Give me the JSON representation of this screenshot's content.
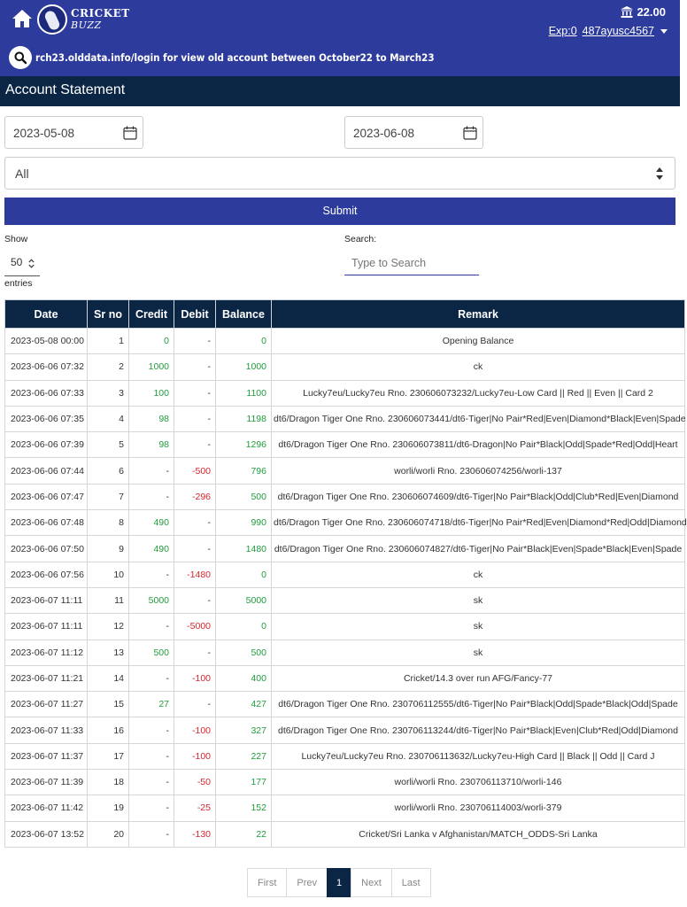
{
  "header": {
    "logo_line1": "CRICKET",
    "logo_line2": "BUZZ",
    "balance": "22.00",
    "exposure": "Exp:0",
    "username": "487ayusc4567",
    "marquee": "rch23.olddata.info/login for view old account between October22 to March23"
  },
  "page": {
    "title": "Account Statement"
  },
  "form": {
    "from_date": "2023-05-08",
    "to_date": "2023-06-08",
    "type_selected": "All",
    "submit_label": "Submit",
    "show_label": "Show",
    "show_value": "50",
    "entries_label": "entries",
    "search_label": "Search:",
    "search_placeholder": "Type to Search"
  },
  "table": {
    "headers": [
      "Date",
      "Sr no",
      "Credit",
      "Debit",
      "Balance",
      "Remark"
    ],
    "rows": [
      {
        "date": "2023-05-08 00:00",
        "sr": "1",
        "credit": "0",
        "debit": "-",
        "balance": "0",
        "remark": "Opening Balance"
      },
      {
        "date": "2023-06-06 07:32",
        "sr": "2",
        "credit": "1000",
        "debit": "-",
        "balance": "1000",
        "remark": "ck"
      },
      {
        "date": "2023-06-06 07:33",
        "sr": "3",
        "credit": "100",
        "debit": "-",
        "balance": "1100",
        "remark": "Lucky7eu/Lucky7eu Rno. 230606073232/Lucky7eu-Low Card || Red || Even || Card 2"
      },
      {
        "date": "2023-06-06 07:35",
        "sr": "4",
        "credit": "98",
        "debit": "-",
        "balance": "1198",
        "remark": "dt6/Dragon Tiger One Rno. 230606073441/dt6-Tiger|No Pair*Red|Even|Diamond*Black|Even|Spade"
      },
      {
        "date": "2023-06-06 07:39",
        "sr": "5",
        "credit": "98",
        "debit": "-",
        "balance": "1296",
        "remark": "dt6/Dragon Tiger One Rno. 230606073811/dt6-Dragon|No Pair*Black|Odd|Spade*Red|Odd|Heart"
      },
      {
        "date": "2023-06-06 07:44",
        "sr": "6",
        "credit": "-",
        "debit": "-500",
        "balance": "796",
        "remark": "worli/worli Rno. 230606074256/worli-137"
      },
      {
        "date": "2023-06-06 07:47",
        "sr": "7",
        "credit": "-",
        "debit": "-296",
        "balance": "500",
        "remark": "dt6/Dragon Tiger One Rno. 230606074609/dt6-Tiger|No Pair*Black|Odd|Club*Red|Even|Diamond"
      },
      {
        "date": "2023-06-06 07:48",
        "sr": "8",
        "credit": "490",
        "debit": "-",
        "balance": "990",
        "remark": "dt6/Dragon Tiger One Rno. 230606074718/dt6-Tiger|No Pair*Red|Even|Diamond*Red|Odd|Diamond"
      },
      {
        "date": "2023-06-06 07:50",
        "sr": "9",
        "credit": "490",
        "debit": "-",
        "balance": "1480",
        "remark": "dt6/Dragon Tiger One Rno. 230606074827/dt6-Tiger|No Pair*Black|Even|Spade*Black|Even|Spade"
      },
      {
        "date": "2023-06-06 07:56",
        "sr": "10",
        "credit": "-",
        "debit": "-1480",
        "balance": "0",
        "remark": "ck"
      },
      {
        "date": "2023-06-07 11:11",
        "sr": "11",
        "credit": "5000",
        "debit": "-",
        "balance": "5000",
        "remark": "sk"
      },
      {
        "date": "2023-06-07 11:11",
        "sr": "12",
        "credit": "-",
        "debit": "-5000",
        "balance": "0",
        "remark": "sk"
      },
      {
        "date": "2023-06-07 11:12",
        "sr": "13",
        "credit": "500",
        "debit": "-",
        "balance": "500",
        "remark": "sk"
      },
      {
        "date": "2023-06-07 11:21",
        "sr": "14",
        "credit": "-",
        "debit": "-100",
        "balance": "400",
        "remark": "Cricket/14.3 over run AFG/Fancy-77"
      },
      {
        "date": "2023-06-07 11:27",
        "sr": "15",
        "credit": "27",
        "debit": "-",
        "balance": "427",
        "remark": "dt6/Dragon Tiger One Rno. 230706112555/dt6-Tiger|No Pair*Black|Odd|Spade*Black|Odd|Spade"
      },
      {
        "date": "2023-06-07 11:33",
        "sr": "16",
        "credit": "-",
        "debit": "-100",
        "balance": "327",
        "remark": "dt6/Dragon Tiger One Rno. 230706113244/dt6-Tiger|No Pair*Black|Even|Club*Red|Odd|Diamond"
      },
      {
        "date": "2023-06-07 11:37",
        "sr": "17",
        "credit": "-",
        "debit": "-100",
        "balance": "227",
        "remark": "Lucky7eu/Lucky7eu Rno. 230706113632/Lucky7eu-High Card || Black || Odd || Card J"
      },
      {
        "date": "2023-06-07 11:39",
        "sr": "18",
        "credit": "-",
        "debit": "-50",
        "balance": "177",
        "remark": "worli/worli Rno. 230706113710/worli-146"
      },
      {
        "date": "2023-06-07 11:42",
        "sr": "19",
        "credit": "-",
        "debit": "-25",
        "balance": "152",
        "remark": "worli/worli Rno. 230706114003/worli-379"
      },
      {
        "date": "2023-06-07 13:52",
        "sr": "20",
        "credit": "-",
        "debit": "-130",
        "balance": "22",
        "remark": "Cricket/Sri Lanka v Afghanistan/MATCH_ODDS-Sri Lanka"
      }
    ]
  },
  "pagination": {
    "first": "First",
    "prev": "Prev",
    "current": "1",
    "next": "Next",
    "last": "Last"
  },
  "colors": {
    "header_bg": "#2c3b9c",
    "title_bg": "#0b2545",
    "credit_green": "#1f9e3c",
    "debit_red": "#d3262e"
  }
}
